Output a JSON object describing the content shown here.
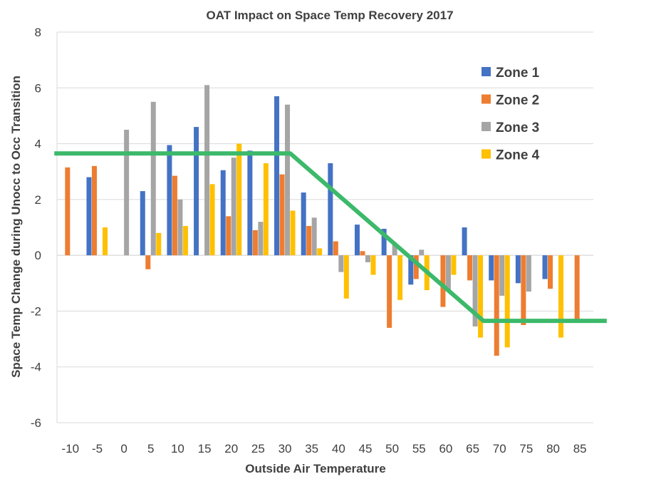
{
  "chart_data": {
    "type": "bar",
    "title": "OAT Impact on Space Temp Recovery 2017",
    "xlabel": "Outside Air Temperature",
    "ylabel": "Space Temp Change during Unocc to Occ Transition",
    "ylim": [
      -6,
      8
    ],
    "yticks": [
      8,
      6,
      4,
      2,
      0,
      -2,
      -4,
      -6
    ],
    "grid": true,
    "legend_position": "top-right",
    "categories": [
      "-10",
      "-5",
      "0",
      "5",
      "10",
      "15",
      "20",
      "25",
      "30",
      "35",
      "40",
      "45",
      "50",
      "55",
      "60",
      "65",
      "70",
      "75",
      "80",
      "85"
    ],
    "series": [
      {
        "name": "Zone 1",
        "color": "#4472C4",
        "values": [
          null,
          2.8,
          null,
          2.3,
          3.95,
          4.6,
          3.05,
          3.75,
          5.7,
          2.25,
          3.3,
          1.1,
          0.95,
          -1.05,
          null,
          1.0,
          -0.9,
          -1.0,
          -0.85,
          null
        ]
      },
      {
        "name": "Zone 2",
        "color": "#ED7D31",
        "values": [
          3.15,
          3.2,
          null,
          -0.5,
          2.85,
          null,
          1.4,
          0.9,
          2.9,
          1.05,
          0.5,
          0.15,
          -2.6,
          -0.85,
          -1.85,
          -0.9,
          -3.6,
          -2.5,
          -1.2,
          -2.3
        ]
      },
      {
        "name": "Zone 3",
        "color": "#A5A5A5",
        "values": [
          null,
          null,
          4.5,
          5.5,
          2.0,
          6.1,
          3.5,
          1.2,
          5.4,
          1.35,
          -0.6,
          -0.25,
          0.4,
          0.2,
          -1.25,
          -2.55,
          -1.45,
          -1.3,
          null,
          null
        ]
      },
      {
        "name": "Zone 4",
        "color": "#FFC000",
        "values": [
          null,
          1.0,
          null,
          0.8,
          1.05,
          2.55,
          4.0,
          3.3,
          1.6,
          0.25,
          -1.55,
          -0.7,
          -1.6,
          -1.25,
          -0.7,
          -2.95,
          -3.3,
          null,
          -2.95,
          null
        ]
      }
    ],
    "trend_line": {
      "color": "#3CB96A",
      "points": [
        [
          -13,
          3.65
        ],
        [
          31,
          3.65
        ],
        [
          67,
          -2.35
        ],
        [
          90,
          -2.35
        ]
      ]
    }
  }
}
